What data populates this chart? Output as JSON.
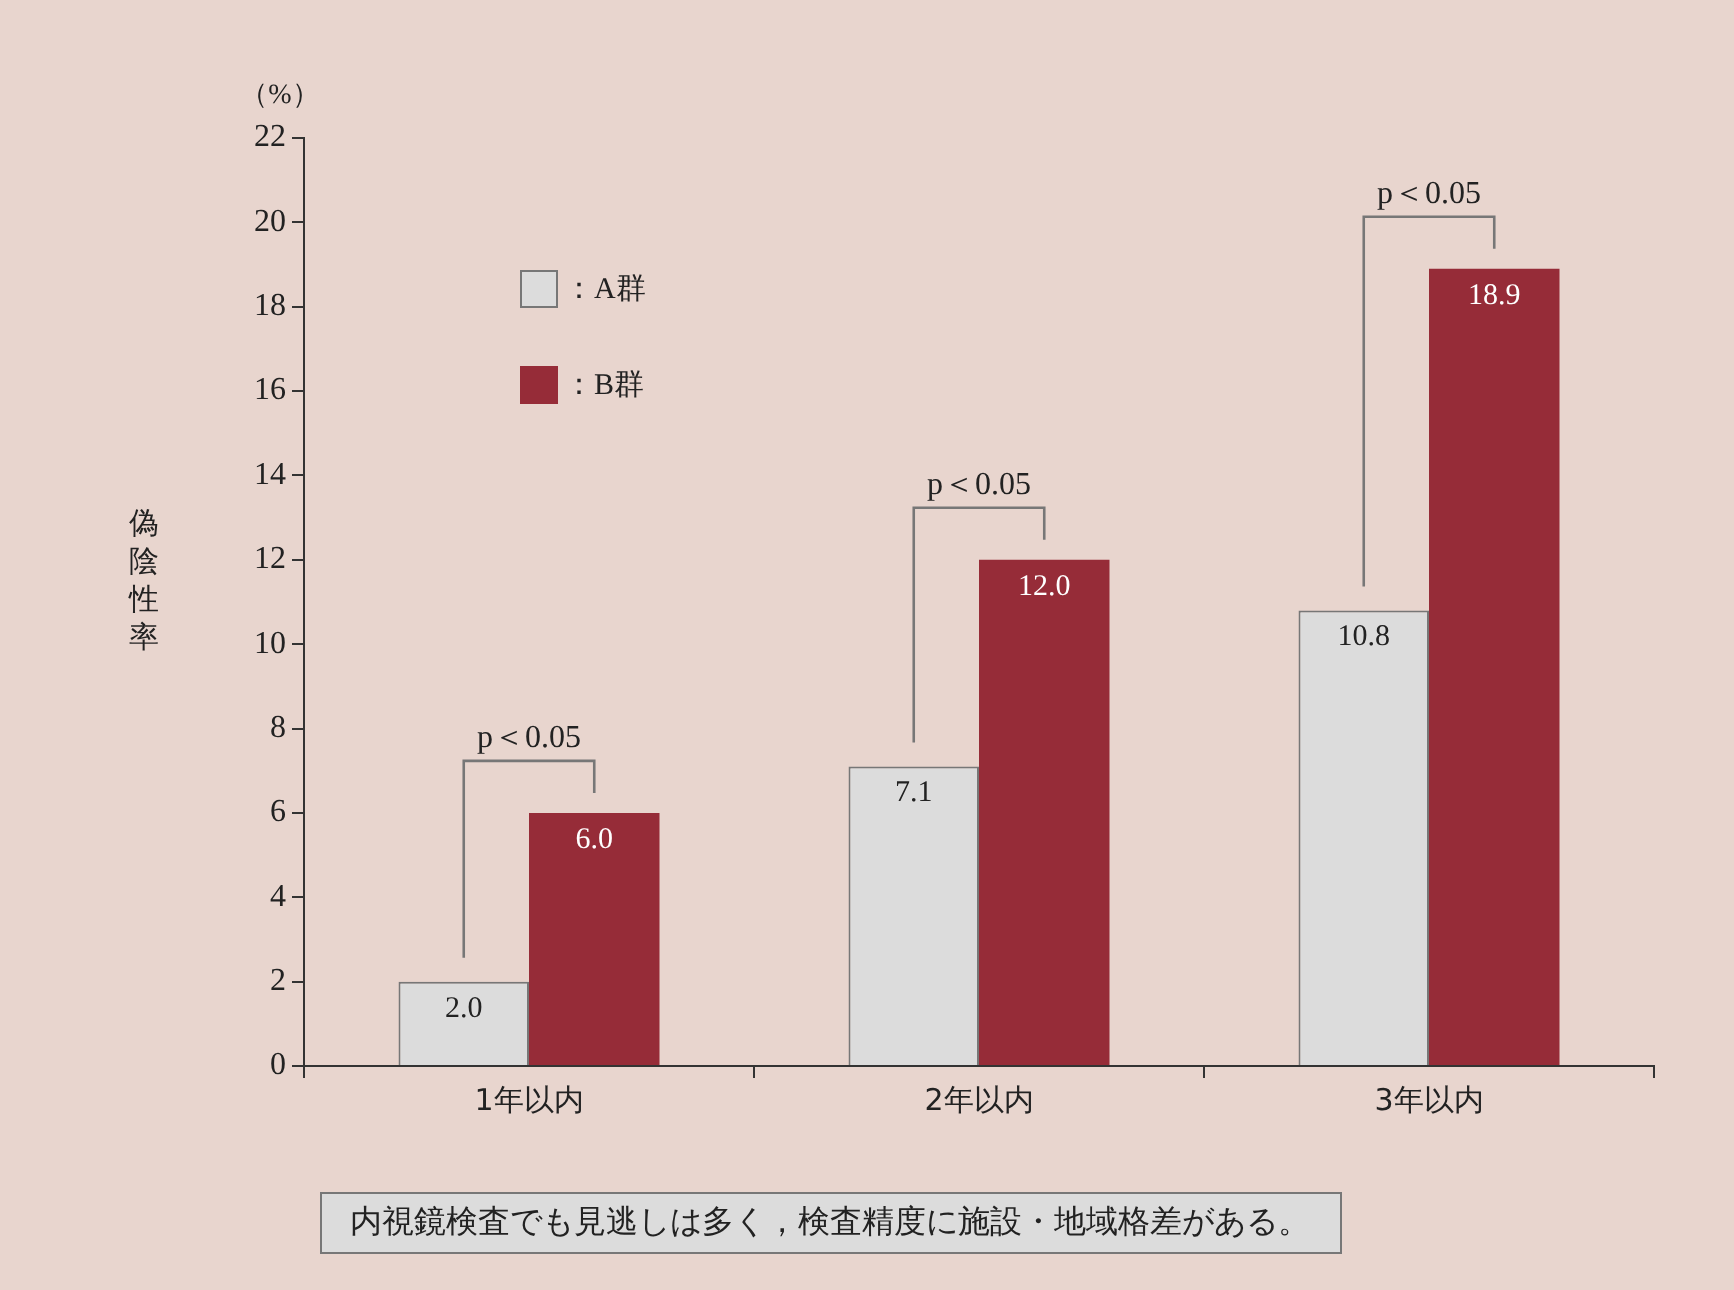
{
  "chart_data": {
    "type": "bar",
    "ylabel": "偽陰性率",
    "categories": [
      "1年以内",
      "2年以内",
      "3年以内"
    ],
    "series": [
      {
        "name": "：A群",
        "color": "#dcdcdc",
        "values": [
          2.0,
          7.1,
          10.8
        ],
        "value_labels": [
          "2.0",
          "7.1",
          "10.8"
        ]
      },
      {
        "name": "：B群",
        "color": "#962c38",
        "values": [
          6.0,
          12.0,
          18.9
        ],
        "value_labels": [
          "6.0",
          "12.0",
          "18.9"
        ]
      }
    ],
    "ylim": [
      0,
      22
    ],
    "yticks": [
      0,
      2,
      4,
      6,
      8,
      10,
      12,
      14,
      16,
      18,
      20,
      22
    ],
    "grid": false,
    "legend": "top left",
    "annotations": [
      "（%）",
      "p＜0.05",
      "p＜0.05",
      "p＜0.05",
      "内視鏡検査でも見逃しは多く，検査精度に施設・地域格差がある。"
    ]
  }
}
